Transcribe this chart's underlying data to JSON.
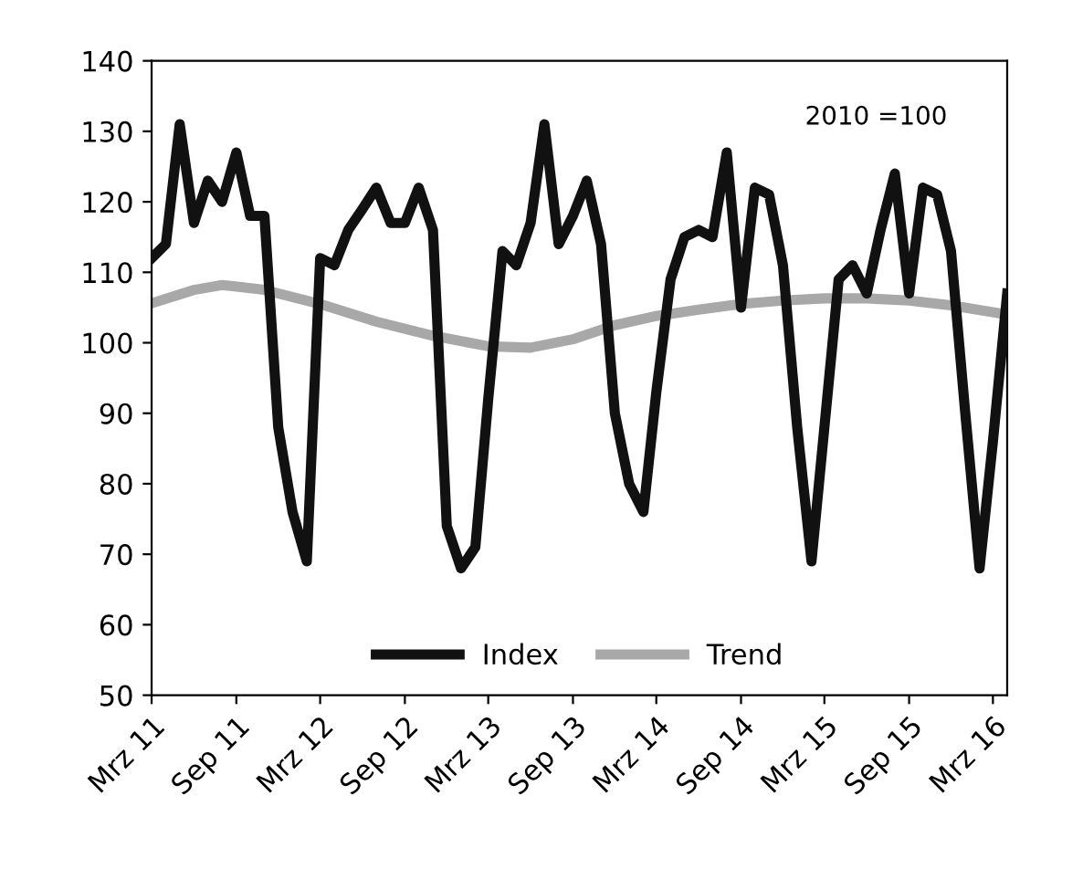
{
  "chart_data": {
    "type": "line",
    "annotations": [
      "2010 =100"
    ],
    "x": [
      "2011-03",
      "2011-04",
      "2011-05",
      "2011-06",
      "2011-07",
      "2011-08",
      "2011-09",
      "2011-10",
      "2011-11",
      "2011-12",
      "2012-01",
      "2012-02",
      "2012-03",
      "2012-04",
      "2012-05",
      "2012-06",
      "2012-07",
      "2012-08",
      "2012-09",
      "2012-10",
      "2012-11",
      "2012-12",
      "2013-01",
      "2013-02",
      "2013-03",
      "2013-04",
      "2013-05",
      "2013-06",
      "2013-07",
      "2013-08",
      "2013-09",
      "2013-10",
      "2013-11",
      "2013-12",
      "2014-01",
      "2014-02",
      "2014-03",
      "2014-04",
      "2014-05",
      "2014-06",
      "2014-07",
      "2014-08",
      "2014-09",
      "2014-10",
      "2014-11",
      "2014-12",
      "2015-01",
      "2015-02",
      "2015-03",
      "2015-04",
      "2015-05",
      "2015-06",
      "2015-07",
      "2015-08",
      "2015-09",
      "2015-10",
      "2015-11",
      "2015-12",
      "2016-01",
      "2016-02",
      "2016-03",
      "2016-04"
    ],
    "series": [
      {
        "name": "Index",
        "color": "#111111",
        "values": [
          112,
          114,
          131,
          117,
          123,
          120,
          127,
          118,
          118,
          88,
          76,
          69,
          112,
          111,
          116,
          119,
          122,
          117,
          117,
          122,
          116,
          74,
          68,
          71,
          92,
          113,
          111,
          117,
          131,
          114,
          118,
          123,
          114,
          90,
          80,
          76,
          93,
          109,
          115,
          116,
          115,
          127,
          105,
          122,
          121,
          111,
          88,
          69,
          88,
          109,
          111,
          107,
          116,
          124,
          107,
          122,
          121,
          113,
          90,
          68,
          86,
          107
        ]
      },
      {
        "name": "Trend",
        "color": "#a8a8a8",
        "x": [
          "2011-03",
          "2011-06",
          "2011-08",
          "2011-11",
          "2012-03",
          "2012-07",
          "2012-11",
          "2013-03",
          "2013-06",
          "2013-09",
          "2013-12",
          "2014-03",
          "2014-06",
          "2014-09",
          "2014-12",
          "2015-03",
          "2015-06",
          "2015-09",
          "2015-12",
          "2016-04"
        ],
        "values": [
          105.6,
          107.5,
          108.2,
          107.5,
          105.5,
          103,
          101,
          99.5,
          99.3,
          100.5,
          102.5,
          103.8,
          104.7,
          105.5,
          106,
          106.3,
          106.3,
          106,
          105.3,
          104
        ]
      }
    ],
    "xlim": [
      "2011-03",
      "2016-04"
    ],
    "xticks": [
      {
        "value": "2011-03",
        "label": "Mrz 11"
      },
      {
        "value": "2011-09",
        "label": "Sep 11"
      },
      {
        "value": "2012-03",
        "label": "Mrz 12"
      },
      {
        "value": "2012-09",
        "label": "Sep 12"
      },
      {
        "value": "2013-03",
        "label": "Mrz 13"
      },
      {
        "value": "2013-09",
        "label": "Sep 13"
      },
      {
        "value": "2014-03",
        "label": "Mrz 14"
      },
      {
        "value": "2014-09",
        "label": "Sep 14"
      },
      {
        "value": "2015-03",
        "label": "Mrz 15"
      },
      {
        "value": "2015-09",
        "label": "Sep 15"
      },
      {
        "value": "2016-03",
        "label": "Mrz 16"
      }
    ],
    "ylim": [
      50,
      140
    ],
    "yticks": [
      50,
      60,
      70,
      80,
      90,
      100,
      110,
      120,
      130,
      140
    ],
    "legend": "bottom",
    "grid": false,
    "line_style": "solid",
    "marker": "none"
  }
}
